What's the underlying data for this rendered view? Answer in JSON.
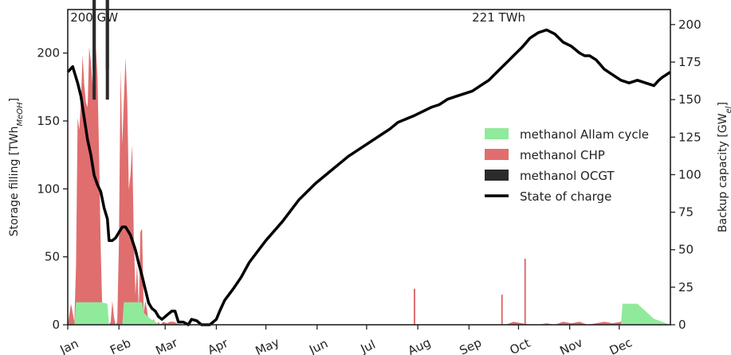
{
  "chart_data": {
    "type": "area",
    "xlabel": "",
    "ylabel": "Storage filling [TWh_MeOH]",
    "ylabel_right": "Backup capacity [GW_el]",
    "x_months": [
      "Jan",
      "Feb",
      "Mar",
      "Apr",
      "May",
      "Jun",
      "Jul",
      "Aug",
      "Sep",
      "Oct",
      "Nov",
      "Dec"
    ],
    "ylim_left": [
      0,
      232
    ],
    "yticks_left": [
      0,
      50,
      100,
      150,
      200
    ],
    "ylim_right": [
      0,
      210
    ],
    "yticks_right": [
      0,
      25,
      50,
      75,
      100,
      125,
      150,
      175,
      200
    ],
    "annotations": [
      {
        "text": "200 GW",
        "x": 16,
        "y": 220
      },
      {
        "text": "221 TWh",
        "x": 261,
        "y": 220
      }
    ],
    "legend": {
      "placement": "center-right",
      "entries": [
        "methanol Allam cycle",
        "methanol CHP",
        "methanol OCGT",
        "State of charge"
      ]
    },
    "colors": {
      "allam": "#90ea9b",
      "chp": "#e06e6e",
      "ocgt": "#2b2b2b",
      "soc": "#000000"
    },
    "state_of_charge": {
      "name": "State of charge",
      "x": [
        0,
        3,
        6,
        8,
        10,
        12,
        14,
        16,
        18,
        20,
        22,
        24,
        25,
        27,
        29,
        31,
        33,
        35,
        38,
        41,
        43,
        45,
        47,
        49,
        51,
        53,
        55,
        57,
        59,
        61,
        63,
        65,
        67,
        70,
        73,
        75,
        78,
        81,
        84,
        86,
        88,
        90,
        92,
        95,
        100,
        105,
        110,
        120,
        130,
        140,
        150,
        160,
        170,
        180,
        190,
        195,
        197,
        200,
        210,
        220,
        225,
        230,
        235,
        240,
        245,
        250,
        255,
        260,
        265,
        270,
        275,
        280,
        285,
        290,
        295,
        300,
        305,
        310,
        313,
        316,
        320,
        325,
        330,
        335,
        340,
        345,
        350,
        355,
        358,
        360,
        365
      ],
      "y": [
        186,
        190,
        178,
        168,
        152,
        136,
        125,
        110,
        103,
        98,
        86,
        78,
        62,
        62,
        64,
        68,
        72,
        72,
        66,
        55,
        45,
        36,
        26,
        16,
        12,
        10,
        6,
        4,
        6,
        8,
        10,
        10,
        2,
        2,
        0,
        4,
        3,
        0,
        0,
        0,
        2,
        4,
        10,
        18,
        26,
        35,
        46,
        62,
        76,
        92,
        104,
        114,
        124,
        132,
        140,
        144,
        146,
        149,
        154,
        160,
        162,
        166,
        168,
        170,
        172,
        176,
        180,
        186,
        192,
        198,
        204,
        211,
        215,
        217,
        214,
        208,
        205,
        200,
        198,
        198,
        195,
        188,
        184,
        180,
        178,
        180,
        178,
        176,
        180,
        182,
        186
      ]
    },
    "chp_area": {
      "name": "methanol CHP",
      "x": [
        0,
        2,
        3,
        4,
        5,
        6,
        7,
        8,
        9,
        10,
        11,
        12,
        13,
        14,
        15,
        16,
        17,
        18,
        19,
        20,
        21,
        22,
        23,
        24,
        25,
        26,
        27,
        28,
        29,
        30,
        31,
        32,
        33,
        34,
        35,
        36,
        37,
        38,
        39,
        40,
        41,
        42,
        43,
        44,
        45,
        46,
        47,
        48,
        49,
        50,
        51,
        52,
        53,
        54,
        55,
        56,
        58,
        60,
        62,
        64,
        66,
        68,
        70,
        72,
        74,
        80,
        100,
        150,
        200,
        260,
        265,
        270,
        275,
        280,
        285,
        290,
        295,
        300,
        305,
        310,
        315,
        320,
        325,
        330,
        335,
        340,
        345,
        350,
        355,
        360,
        365
      ],
      "y": [
        0,
        14,
        8,
        2,
        40,
        138,
        130,
        150,
        180,
        160,
        148,
        145,
        185,
        175,
        160,
        152,
        185,
        165,
        110,
        50,
        6,
        10,
        4,
        6,
        0,
        2,
        16,
        5,
        0,
        2,
        55,
        170,
        120,
        150,
        178,
        150,
        90,
        100,
        120,
        60,
        20,
        40,
        10,
        62,
        64,
        8,
        16,
        10,
        2,
        1,
        0,
        4,
        1,
        0,
        2,
        0,
        2,
        1,
        2,
        2,
        1,
        0,
        0,
        1,
        0,
        0,
        0,
        0,
        0,
        0,
        0,
        2,
        1,
        0,
        0,
        1,
        0,
        2,
        1,
        2,
        0,
        1,
        2,
        1,
        2,
        1,
        2,
        1,
        0,
        0,
        0
      ]
    },
    "ocgt_spikes": {
      "name": "methanol OCGT",
      "x": [
        16,
        24
      ],
      "y": [
        220,
        220
      ]
    },
    "allam_area": {
      "name": "methanol Allam cycle",
      "x": [
        0,
        4,
        5,
        10,
        20,
        24,
        25,
        33,
        34,
        45,
        46,
        50,
        56,
        60,
        100,
        200,
        250,
        255,
        300,
        310,
        330,
        335,
        336,
        345,
        355,
        365
      ],
      "y": [
        0,
        0,
        15,
        15,
        15,
        14,
        0,
        0,
        15,
        15,
        8,
        4,
        0,
        0,
        0,
        0,
        0,
        0,
        0,
        0,
        0,
        0,
        14,
        14,
        4,
        0
      ]
    },
    "spikes": [
      {
        "x": 210,
        "y": 24
      },
      {
        "x": 263,
        "y": 20
      },
      {
        "x": 277,
        "y": 44
      }
    ]
  }
}
